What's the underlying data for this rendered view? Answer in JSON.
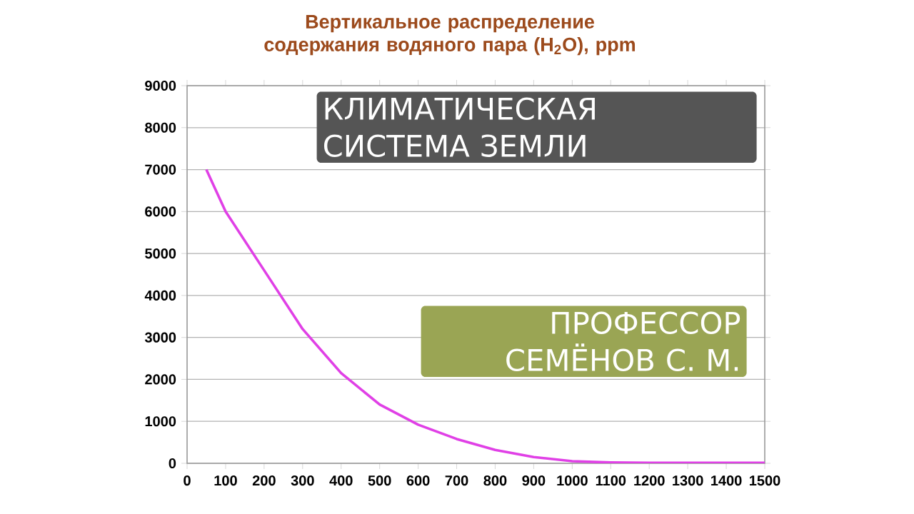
{
  "chart_data": {
    "type": "line",
    "title": "Вертикальное распределение содержания водяного пара (H$_{2}$O), ppm",
    "annotations": [
      "КЛИМАТИЧЕСКАЯ СИСТЕМА ЗЕМЛИ",
      "ПРОФЕССОР СЕМЁНОВ С. М."
    ],
    "x": [
      50,
      100,
      200,
      300,
      400,
      500,
      600,
      700,
      800,
      900,
      1000,
      1100,
      1200,
      1300,
      1400,
      1500
    ],
    "values": [
      7000,
      6000,
      4600,
      3200,
      2150,
      1400,
      920,
      580,
      320,
      150,
      50,
      20,
      10,
      10,
      10,
      10
    ],
    "color": "#e040e6",
    "xlim": [
      0,
      1500
    ],
    "xticks": [
      0,
      100,
      200,
      300,
      400,
      500,
      600,
      700,
      800,
      900,
      1000,
      1100,
      1200,
      1300,
      1400,
      1500
    ],
    "ylim": [
      0,
      9000
    ],
    "yticks": [
      0,
      1000,
      2000,
      3000,
      4000,
      5000,
      6000,
      7000,
      8000,
      9000
    ],
    "grid": "y"
  }
}
